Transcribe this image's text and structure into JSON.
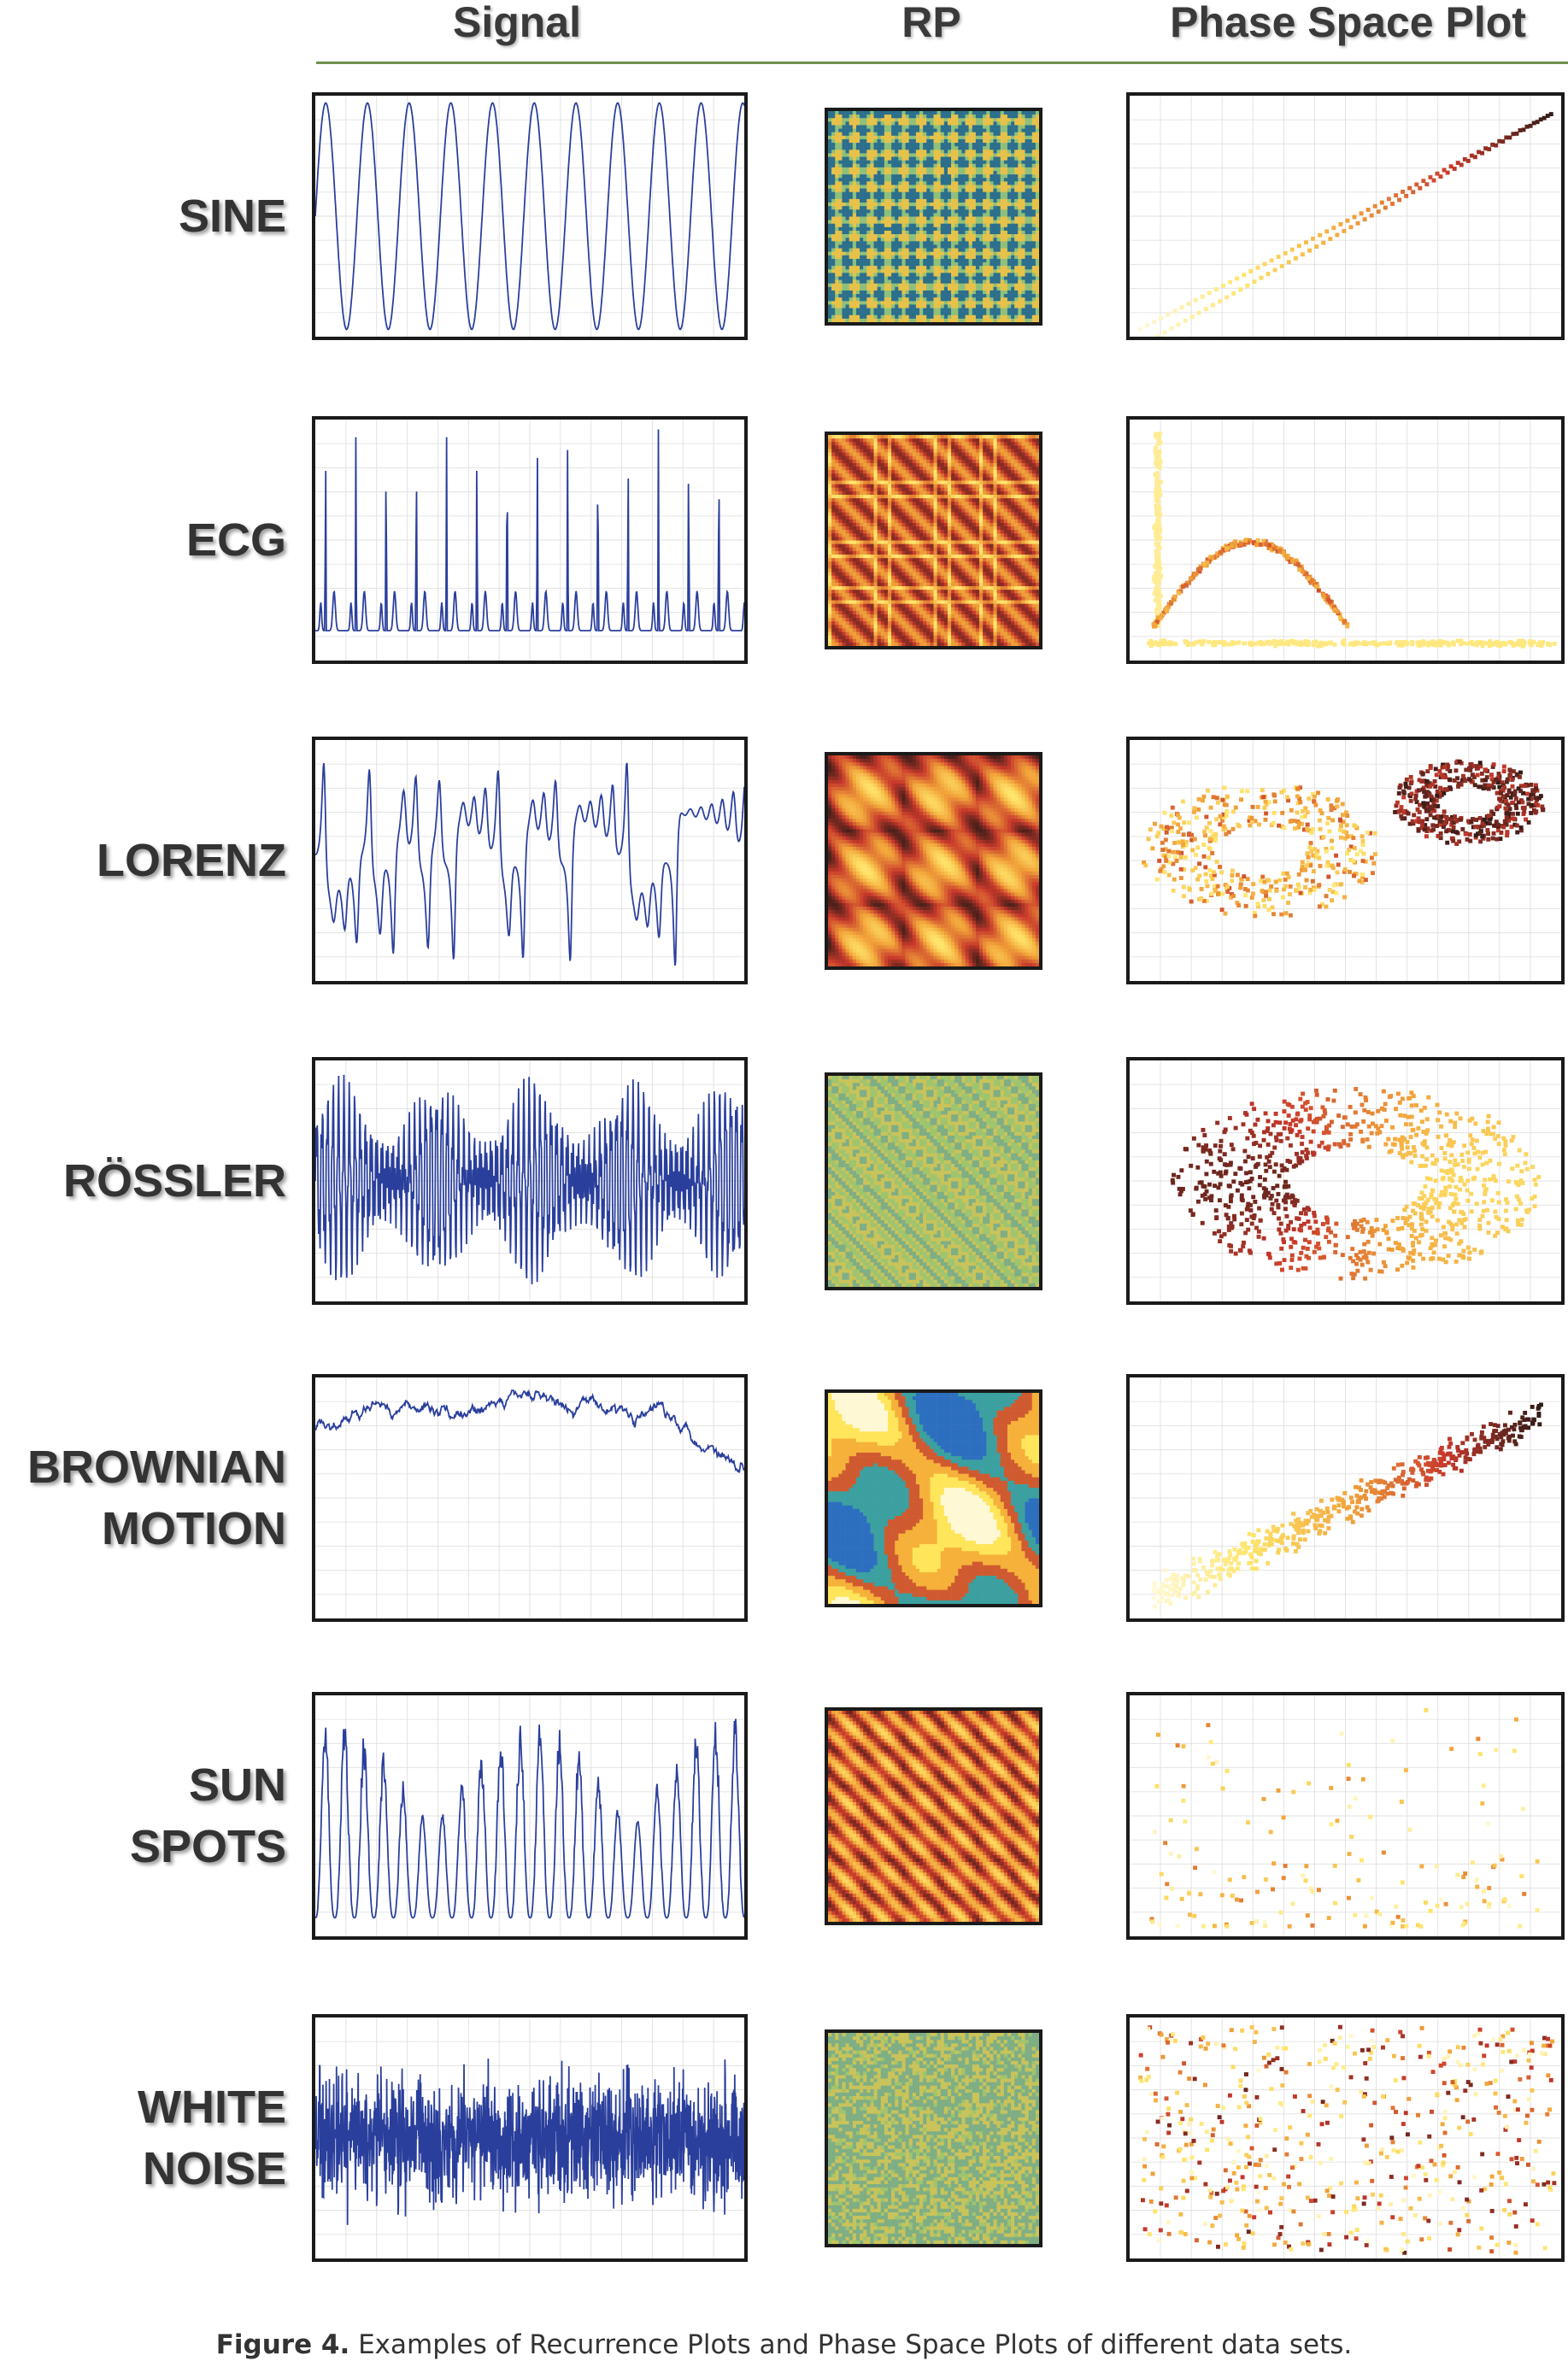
{
  "columns": {
    "signal": "Signal",
    "rp": "RP",
    "phase": "Phase Space Plot"
  },
  "rows": [
    {
      "id": "sine",
      "label_lines": [
        "SINE"
      ]
    },
    {
      "id": "ecg",
      "label_lines": [
        "ECG"
      ]
    },
    {
      "id": "lorenz",
      "label_lines": [
        "LORENZ"
      ]
    },
    {
      "id": "rossler",
      "label_lines": [
        "RÖSSLER"
      ]
    },
    {
      "id": "brownian",
      "label_lines": [
        "BROWNIAN",
        "MOTION"
      ]
    },
    {
      "id": "sunspots",
      "label_lines": [
        "SUN",
        "SPOTS"
      ]
    },
    {
      "id": "whitenoise",
      "label_lines": [
        "WHITE",
        "NOISE"
      ]
    }
  ],
  "caption": {
    "label": "Figure 4.",
    "text": " Examples of Recurrence Plots and Phase Space Plots of different data sets."
  },
  "colors": {
    "signal_line": "#2a3f9c",
    "rule": "#6f8f4f",
    "heat": [
      "#fff9d6",
      "#ffe46a",
      "#f2a53a",
      "#c8392b",
      "#2e1a16"
    ]
  }
}
